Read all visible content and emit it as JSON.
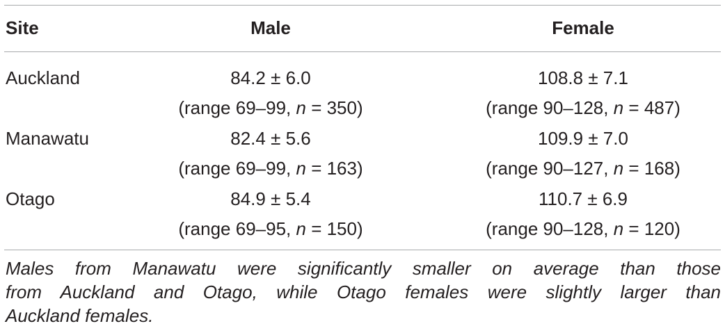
{
  "table": {
    "headers": {
      "site": "Site",
      "male": "Male",
      "female": "Female"
    },
    "rows": [
      {
        "site": "Auckland",
        "male": {
          "mean": "84.2 ± 6.0",
          "range_prefix": "(range 69–99, ",
          "n_label": "n",
          "n_suffix": " = 350)"
        },
        "female": {
          "mean": "108.8 ± 7.1",
          "range_prefix": "(range 90–128, ",
          "n_label": "n",
          "n_suffix": " = 487)"
        }
      },
      {
        "site": "Manawatu",
        "male": {
          "mean": "82.4 ± 5.6",
          "range_prefix": "(range 69–99, ",
          "n_label": "n",
          "n_suffix": " = 163)"
        },
        "female": {
          "mean": "109.9 ± 7.0",
          "range_prefix": "(range 90–127, ",
          "n_label": "n",
          "n_suffix": " = 168)"
        }
      },
      {
        "site": "Otago",
        "male": {
          "mean": "84.9 ± 5.4",
          "range_prefix": "(range 69–95, ",
          "n_label": "n",
          "n_suffix": " = 150)"
        },
        "female": {
          "mean": "110.7 ± 6.9",
          "range_prefix": "(range 90–128, ",
          "n_label": "n",
          "n_suffix": " = 120)"
        }
      }
    ],
    "footnote_lines": [
      "Males from Manawatu were significantly smaller on average than those",
      "from Auckland and Otago, while Otago females were slightly larger than",
      "Auckland females."
    ]
  }
}
